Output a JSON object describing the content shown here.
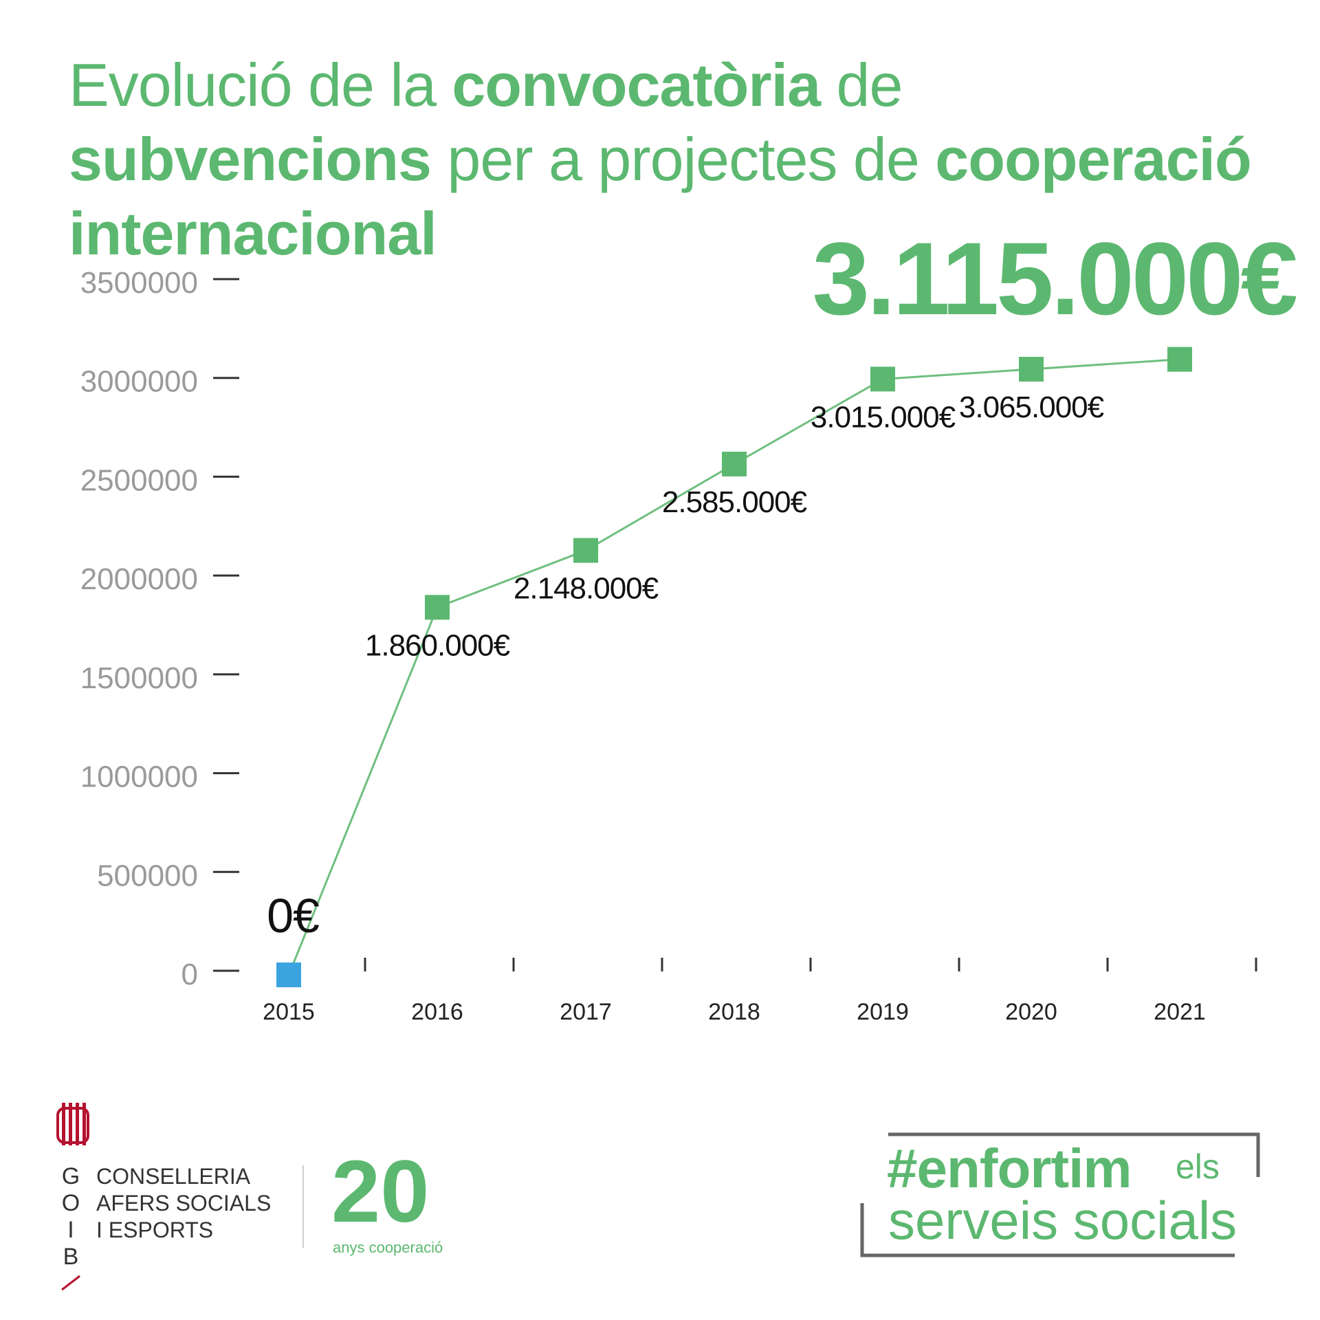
{
  "title": {
    "parts": [
      {
        "text": "Evolució de la ",
        "bold": false
      },
      {
        "text": "convocatòria",
        "bold": true
      },
      {
        "text": " de ",
        "bold": false
      },
      {
        "text": "subvencions",
        "bold": true
      },
      {
        "text": " per a projectes de ",
        "bold": false
      },
      {
        "text": "cooperació internacional",
        "bold": true
      }
    ]
  },
  "headline_value": "3.115.000€",
  "chart_data": {
    "type": "line",
    "title": "Evolució de la convocatòria de subvencions per a projectes de cooperació internacional",
    "xlabel": "",
    "ylabel": "",
    "x": [
      "2015",
      "2016",
      "2017",
      "2018",
      "2019",
      "2020",
      "2021"
    ],
    "series": [
      {
        "values": [
          0,
          1860000,
          2148000,
          2585000,
          3015000,
          3065000,
          3115000
        ],
        "data_labels": [
          "0€",
          "1.860.000€",
          "2.148.000€",
          "2.585.000€",
          "3.015.000€",
          "3.065.000€",
          ""
        ]
      }
    ],
    "ylim": [
      0,
      3500000
    ],
    "yticks": [
      "0",
      "500000",
      "1000000",
      "1500000",
      "2000000",
      "2500000",
      "3000000",
      "3500000"
    ],
    "grid": false,
    "colors": {
      "line": "#6fbf7f",
      "marker": "#5cb870",
      "first_marker": "#3aa3e0",
      "tick_label": "#9a9a9a",
      "axis_mark": "#333333"
    }
  },
  "footer": {
    "goib_letters": [
      "G",
      "O",
      "I",
      "B"
    ],
    "conselleria_lines": [
      "CONSELLERIA",
      "AFERS SOCIALS",
      "I ESPORTS"
    ],
    "anniversary_number": "20",
    "anniversary_text": "anys cooperació",
    "hashtag": "#enfortim",
    "hashtag_els": "els",
    "hashtag_sub": "serveis socials"
  },
  "colors": {
    "brand_green": "#5cb870",
    "goib_red": "#b5122f",
    "frame_grey": "#666666"
  }
}
